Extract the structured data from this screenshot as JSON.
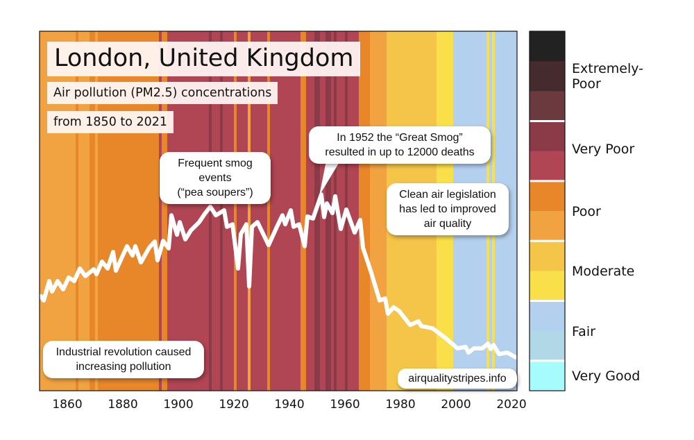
{
  "title": "London, United Kingdom",
  "subtitle_line1": "Air pollution (PM2.5) concentrations",
  "subtitle_line2": "from 1850 to 2021",
  "annotations": {
    "smog_line1": "Frequent smog events",
    "smog_line2": "(“pea soupers”)",
    "great_smog_line1": "In 1952 the “Great Smog”",
    "great_smog_line2": "resulted in up to 12000 deaths",
    "clean_air_line1": "Clean air legislation",
    "clean_air_line2": "has led to improved",
    "clean_air_line3": "air quality",
    "industrial_line1": "Industrial revolution caused",
    "industrial_line2": "increasing pollution",
    "source": "airqualitystripes.info"
  },
  "legend": {
    "colors": [
      "#222222",
      "#452b2e",
      "#6b3a3e",
      "#8b3a47",
      "#b04553",
      "#e8862a",
      "#f0a340",
      "#f4c548",
      "#f9e04a",
      "#b3d0ee",
      "#b0d8e6",
      "#a6fcfc"
    ],
    "label_extremely_poor_1": "Extremely-",
    "label_extremely_poor_2": "Poor",
    "label_very_poor": "Very Poor",
    "label_poor": "Poor",
    "label_moderate": "Moderate",
    "label_fair": "Fair",
    "label_very_good": "Very Good"
  },
  "chart_data": {
    "type": "line",
    "xlim": [
      1850,
      2021
    ],
    "ylim": [
      0,
      100
    ],
    "xticks": [
      "1860",
      "1880",
      "1900",
      "1920",
      "1940",
      "1960",
      "1980",
      "2000",
      "2020"
    ],
    "xtick_values": [
      1860,
      1880,
      1900,
      1920,
      1940,
      1960,
      1980,
      2000,
      2020
    ],
    "line_color": "#ffffff",
    "stripes_level_runs": [
      [
        1850,
        1862,
        6
      ],
      [
        1863,
        1863,
        5
      ],
      [
        1864,
        1867,
        6
      ],
      [
        1868,
        1869,
        5
      ],
      [
        1870,
        1870,
        6
      ],
      [
        1871,
        1892,
        5
      ],
      [
        1893,
        1893,
        4
      ],
      [
        1894,
        1895,
        5
      ],
      [
        1896,
        1910,
        4
      ],
      [
        1911,
        1911,
        3
      ],
      [
        1912,
        1914,
        4
      ],
      [
        1915,
        1915,
        3
      ],
      [
        1916,
        1919,
        4
      ],
      [
        1920,
        1920,
        5
      ],
      [
        1921,
        1924,
        4
      ],
      [
        1925,
        1925,
        6
      ],
      [
        1926,
        1931,
        4
      ],
      [
        1932,
        1932,
        5
      ],
      [
        1933,
        1943,
        4
      ],
      [
        1944,
        1945,
        5
      ],
      [
        1946,
        1948,
        4
      ],
      [
        1949,
        1950,
        3
      ],
      [
        1951,
        1952,
        4
      ],
      [
        1953,
        1954,
        3
      ],
      [
        1955,
        1955,
        4
      ],
      [
        1956,
        1956,
        3
      ],
      [
        1957,
        1959,
        4
      ],
      [
        1960,
        1960,
        3
      ],
      [
        1961,
        1964,
        4
      ],
      [
        1965,
        1968,
        5
      ],
      [
        1969,
        1974,
        6
      ],
      [
        1975,
        1992,
        7
      ],
      [
        1993,
        1998,
        8
      ],
      [
        1999,
        2010,
        9
      ],
      [
        2011,
        2011,
        8
      ],
      [
        2012,
        2012,
        9
      ],
      [
        2013,
        2013,
        8
      ],
      [
        2014,
        2021,
        9
      ]
    ],
    "series": [
      {
        "x": [
          1850,
          1851,
          1853,
          1854,
          1856,
          1858,
          1860,
          1862,
          1864,
          1866,
          1869,
          1870,
          1872,
          1874,
          1876,
          1877,
          1881,
          1883,
          1884,
          1886,
          1889,
          1891,
          1892,
          1894,
          1896,
          1897,
          1899,
          1900,
          1902,
          1904,
          1907,
          1909,
          1911,
          1913,
          1916,
          1917,
          1919,
          1921,
          1922,
          1924,
          1925,
          1926,
          1928,
          1932,
          1935,
          1937,
          1938,
          1940,
          1941,
          1943,
          1945,
          1946,
          1948,
          1951,
          1952,
          1953,
          1955,
          1956,
          1958,
          1960,
          1963,
          1965,
          1966,
          1969,
          1972,
          1974,
          1975,
          1977,
          1979,
          1983,
          1986,
          1987,
          1991,
          1996,
          2000,
          2003,
          2004,
          2006,
          2009,
          2011,
          2012,
          2013,
          2015,
          2018,
          2021
        ],
        "values": [
          26.3,
          25.1,
          30.5,
          27.6,
          30.5,
          28.2,
          31.5,
          30.5,
          34,
          31.9,
          33.8,
          32.4,
          35.9,
          34,
          38.6,
          33.4,
          40.2,
          37.6,
          40.2,
          35.7,
          39.8,
          41.5,
          36.3,
          41.7,
          39.6,
          48.8,
          43.4,
          46.9,
          42.1,
          44.6,
          46.9,
          49.2,
          51.2,
          48.8,
          50.2,
          45.6,
          46.3,
          34,
          43.6,
          46.3,
          29,
          45.6,
          46.9,
          40.5,
          45.6,
          48.8,
          46.3,
          50.2,
          45.6,
          46.3,
          40.2,
          48.5,
          47.9,
          54.6,
          48.3,
          52.1,
          49.4,
          54.1,
          45,
          50.4,
          44,
          47.5,
          39.8,
          32.8,
          25.1,
          25.7,
          21.4,
          23.2,
          22.2,
          18.3,
          19.3,
          18,
          17.4,
          14.5,
          11.8,
          12.2,
          10.6,
          11.8,
          11.8,
          13.1,
          11.6,
          12.7,
          10.2,
          10.6,
          9.3
        ]
      }
    ]
  }
}
